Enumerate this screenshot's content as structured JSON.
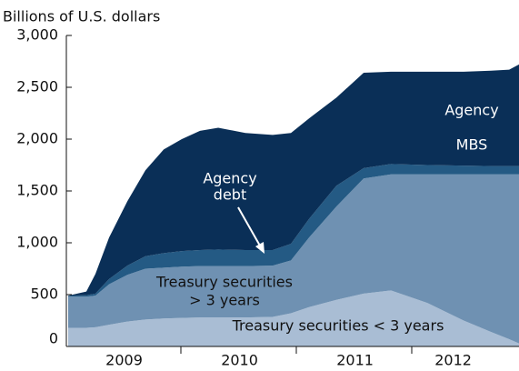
{
  "chart_data": {
    "type": "stacked_area",
    "y_label": "Billions of U.S. dollars",
    "x": [
      2009.016,
      2009.173,
      2009.252,
      2009.37,
      2009.528,
      2009.685,
      2009.843,
      2010.0,
      2010.157,
      2010.315,
      2010.551,
      2010.787,
      2010.945,
      2011.102,
      2011.339,
      2011.575,
      2011.811,
      2012.126,
      2012.441,
      2012.677,
      2012.835,
      2012.92
    ],
    "xlim": [
      2009,
      2012.92
    ],
    "xticks": [
      {
        "value": 2009.5,
        "label": "2009"
      },
      {
        "value": 2010.5,
        "label": "2010"
      },
      {
        "value": 2011.5,
        "label": "2011"
      },
      {
        "value": 2012.35,
        "label": "2012"
      }
    ],
    "ylim": [
      0,
      3000
    ],
    "yticks": [
      0,
      500,
      {
        "value": 1000,
        "label": "1,000"
      },
      {
        "value": 1500,
        "label": "1,500"
      },
      {
        "value": 2000,
        "label": "2,000"
      },
      {
        "value": 2500,
        "label": "2,500"
      },
      {
        "value": 3000,
        "label": "3,000"
      }
    ],
    "series": [
      {
        "name": "Treasury securities < 3 years",
        "color": "#a9bdd4",
        "values": [
          180,
          180,
          185,
          210,
          240,
          260,
          270,
          275,
          280,
          280,
          280,
          285,
          320,
          380,
          450,
          510,
          540,
          420,
          250,
          140,
          70,
          30
        ]
      },
      {
        "name": "Treasury securities > 3 years",
        "color": "#6f91b2",
        "values": [
          300,
          300,
          305,
          390,
          450,
          490,
          490,
          495,
          495,
          495,
          495,
          495,
          510,
          670,
          900,
          1110,
          1120,
          1240,
          1410,
          1520,
          1590,
          1630
        ]
      },
      {
        "name": "Agency debt",
        "color": "#245a84",
        "values": [
          10,
          15,
          20,
          50,
          90,
          120,
          140,
          150,
          155,
          160,
          155,
          150,
          160,
          180,
          200,
          100,
          100,
          90,
          85,
          80,
          80,
          80
        ]
      },
      {
        "name": "Agency MBS",
        "color": "#0a2f57",
        "values": [
          0,
          35,
          190,
          400,
          620,
          830,
          1000,
          1080,
          1150,
          1175,
          1130,
          1110,
          1070,
          970,
          850,
          920,
          890,
          900,
          905,
          920,
          930,
          980
        ]
      }
    ],
    "annotations": [
      "Agency",
      "MBS",
      "Agency",
      "debt",
      "Treasury securities",
      "> 3 years",
      "Treasury securities < 3 years"
    ]
  }
}
